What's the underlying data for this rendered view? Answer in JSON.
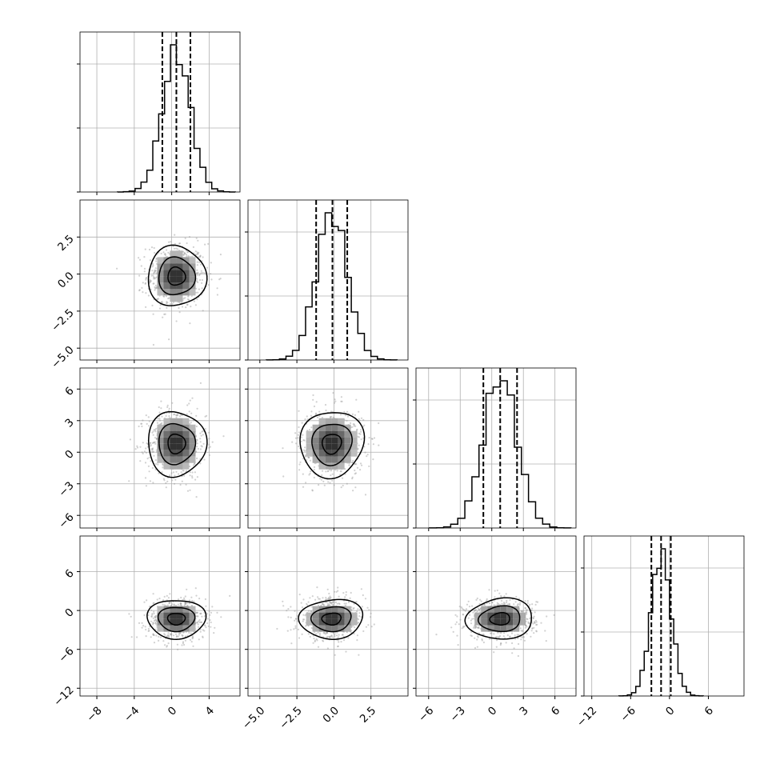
{
  "chart_data": {
    "type": "corner",
    "parameters": [
      {
        "range": [
          -9.8,
          7.3
        ],
        "ticks": [
          -8,
          -4,
          0,
          4
        ],
        "tick_labels": [
          "−8",
          "−4",
          "0",
          "4"
        ],
        "quantiles": [
          -1.0,
          0.5,
          2.0
        ],
        "center": 0.5,
        "sigma": 1.5
      },
      {
        "range": [
          -5.8,
          5.0
        ],
        "ticks": [
          -5.0,
          -2.5,
          0.0,
          2.5
        ],
        "tick_labels": [
          "−5.0",
          "−2.5",
          "0.0",
          "2.5"
        ],
        "quantiles": [
          -1.2,
          -0.1,
          0.9
        ],
        "center": -0.15,
        "sigma": 1.05
      },
      {
        "range": [
          -7.2,
          8.0
        ],
        "ticks": [
          -6,
          -3,
          0,
          3,
          6
        ],
        "tick_labels": [
          "−6",
          "−3",
          "0",
          "3",
          "6"
        ],
        "quantiles": [
          -0.8,
          0.8,
          2.4
        ],
        "center": 0.8,
        "sigma": 1.6
      },
      {
        "range": [
          -13.2,
          11.5
        ],
        "ticks": [
          -12,
          -6,
          0,
          6
        ],
        "tick_labels": [
          "−12",
          "−6",
          "0",
          "6"
        ],
        "quantiles": [
          -2.8,
          -1.3,
          0.2
        ],
        "center": -1.3,
        "sigma": 1.55
      }
    ],
    "hist_bins": 20,
    "ylabels_shown_for": [
      1,
      2,
      3
    ],
    "xlabels_shown_for": [
      0,
      1,
      2,
      3
    ],
    "contour_levels": 3,
    "grid": true,
    "point_color": "#9a9a9a"
  }
}
